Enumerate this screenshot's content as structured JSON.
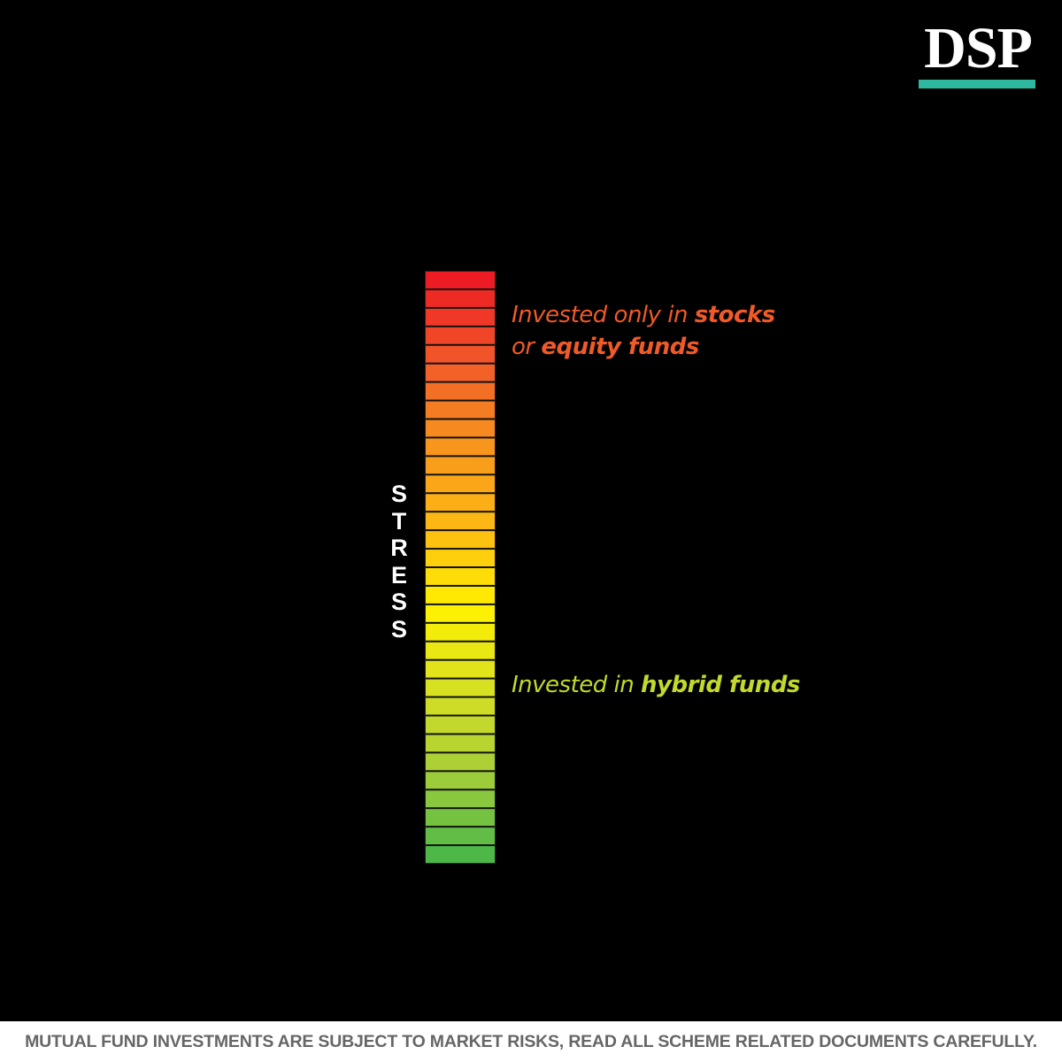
{
  "brand": {
    "logo_text": "DSP",
    "accent_color": "#2fb8a0"
  },
  "meter": {
    "axis_label": [
      "S",
      "T",
      "R",
      "E",
      "S",
      "S"
    ],
    "segment_count": 32,
    "gradient_colors": [
      "#ed1c24",
      "#f15a29",
      "#f7941d",
      "#fdb913",
      "#fff200",
      "#d7df23",
      "#a6ce39",
      "#4db848"
    ]
  },
  "annotations": {
    "high": {
      "line1_prefix": "Invested only in ",
      "line1_bold": "stocks",
      "line2_prefix": "or ",
      "line2_bold": "equity funds",
      "color": "#f05a28"
    },
    "low": {
      "prefix": "Invested in ",
      "bold": "hybrid funds",
      "color": "#c3d92b"
    }
  },
  "footer": {
    "disclaimer": "MUTUAL FUND INVESTMENTS ARE SUBJECT TO MARKET RISKS, READ ALL SCHEME RELATED DOCUMENTS CAREFULLY."
  }
}
